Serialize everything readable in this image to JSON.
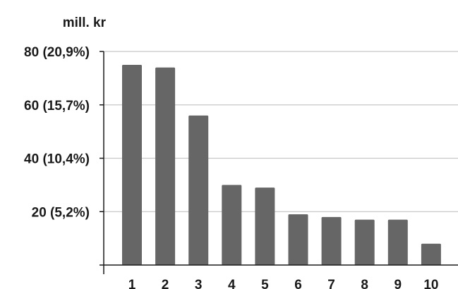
{
  "chart_data": {
    "type": "bar",
    "title": "",
    "xlabel": "",
    "ylabel": "mill. kr",
    "categories": [
      "1",
      "2",
      "3",
      "4",
      "5",
      "6",
      "7",
      "8",
      "9",
      "10"
    ],
    "values": [
      75,
      74,
      56,
      30,
      29,
      19,
      18,
      17,
      17,
      8
    ],
    "ylim": [
      0,
      80
    ],
    "yticks": [
      {
        "value": 80,
        "label": "80 (20,9%)"
      },
      {
        "value": 60,
        "label": "60 (15,7%)"
      },
      {
        "value": 40,
        "label": "40 (10,4%)"
      },
      {
        "value": 20,
        "label": "20 (5,2%)"
      }
    ],
    "grid": true,
    "colors": {
      "bar": "#666666",
      "grid": "#c8c8c8",
      "axis": "#1a1a1a"
    }
  }
}
